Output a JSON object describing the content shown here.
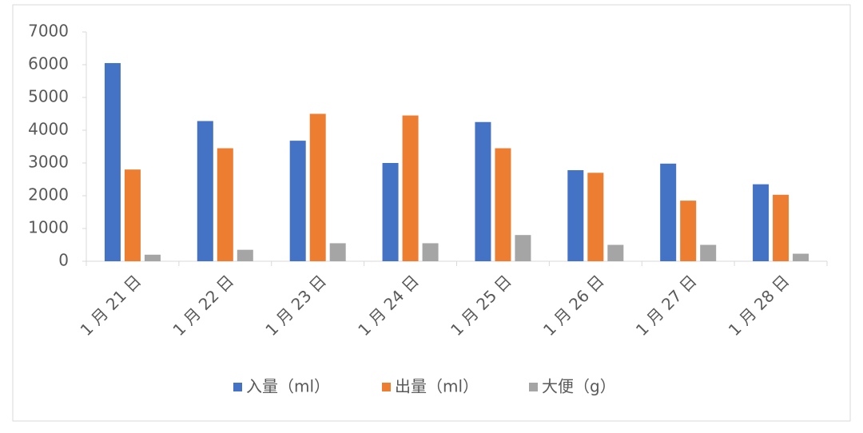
{
  "chart_data": {
    "type": "bar",
    "categories": [
      "1 月 21 日",
      "1 月 22 日",
      "1 月 23 日",
      "1 月 24 日",
      "1 月 25 日",
      "1 月 26 日",
      "1 月 27 日",
      "1 月 28 日"
    ],
    "series": [
      {
        "name": "入量（ml）",
        "color": "#4472c4",
        "values": [
          6050,
          4280,
          3680,
          3000,
          4250,
          2780,
          2980,
          2350
        ]
      },
      {
        "name": "出量（ml）",
        "color": "#ed7d31",
        "values": [
          2800,
          3450,
          4500,
          4450,
          3450,
          2700,
          1850,
          2030
        ]
      },
      {
        "name": "大便（g）",
        "color": "#a5a5a5",
        "values": [
          200,
          350,
          550,
          550,
          800,
          500,
          500,
          230
        ]
      }
    ],
    "ylim": [
      0,
      7000
    ],
    "yticks": [
      0,
      1000,
      2000,
      3000,
      4000,
      5000,
      6000,
      7000
    ],
    "grid": false,
    "legend": "bottom"
  }
}
